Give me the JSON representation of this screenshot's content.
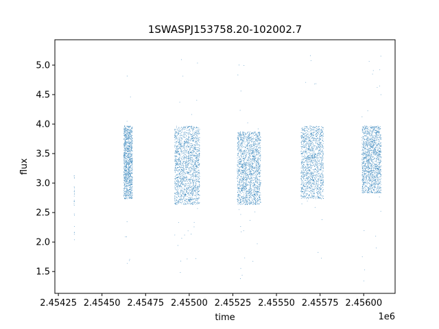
{
  "chart_data": {
    "type": "scatter",
    "title": "1SWASPJ153758.20-102002.7",
    "xlabel": "time",
    "ylabel": "flux",
    "x_offset_label": "1e6",
    "xlim": [
      2454230,
      2456180
    ],
    "ylim": [
      1.13,
      5.43
    ],
    "x_ticks": [
      2454250,
      2454500,
      2454750,
      2455000,
      2455250,
      2455500,
      2455750,
      2456000
    ],
    "x_tick_labels": [
      "2.45425",
      "2.45450",
      "2.45475",
      "2.45500",
      "2.45525",
      "2.45550",
      "2.45575",
      "2.45600"
    ],
    "y_ticks": [
      1.5,
      2.0,
      2.5,
      3.0,
      3.5,
      4.0,
      4.5,
      5.0
    ],
    "y_tick_labels": [
      "1.5",
      "2.0",
      "2.5",
      "3.0",
      "3.5",
      "4.0",
      "4.5",
      "5.0"
    ],
    "grid": false,
    "marker_color": "#1f77b4",
    "seasons": [
      {
        "x_range": [
          2454340,
          2454342
        ],
        "flux_range": [
          2.0,
          3.2
        ],
        "approx_points": 25
      },
      {
        "x_range": [
          2454625,
          2454675
        ],
        "flux_range": [
          2.7,
          4.0
        ],
        "approx_points": 1100
      },
      {
        "x_range": [
          2454915,
          2455060
        ],
        "flux_range": [
          2.6,
          4.0
        ],
        "approx_points": 1800
      },
      {
        "x_range": [
          2455275,
          2455410
        ],
        "flux_range": [
          2.6,
          3.9
        ],
        "approx_points": 1800
      },
      {
        "x_range": [
          2455640,
          2455770
        ],
        "flux_range": [
          2.7,
          4.0
        ],
        "approx_points": 1500
      },
      {
        "x_range": [
          2455990,
          2456100
        ],
        "flux_range": [
          2.8,
          4.0
        ],
        "approx_points": 1500
      }
    ],
    "outlier_extent": {
      "flux_min": 1.32,
      "flux_max": 5.24
    }
  }
}
